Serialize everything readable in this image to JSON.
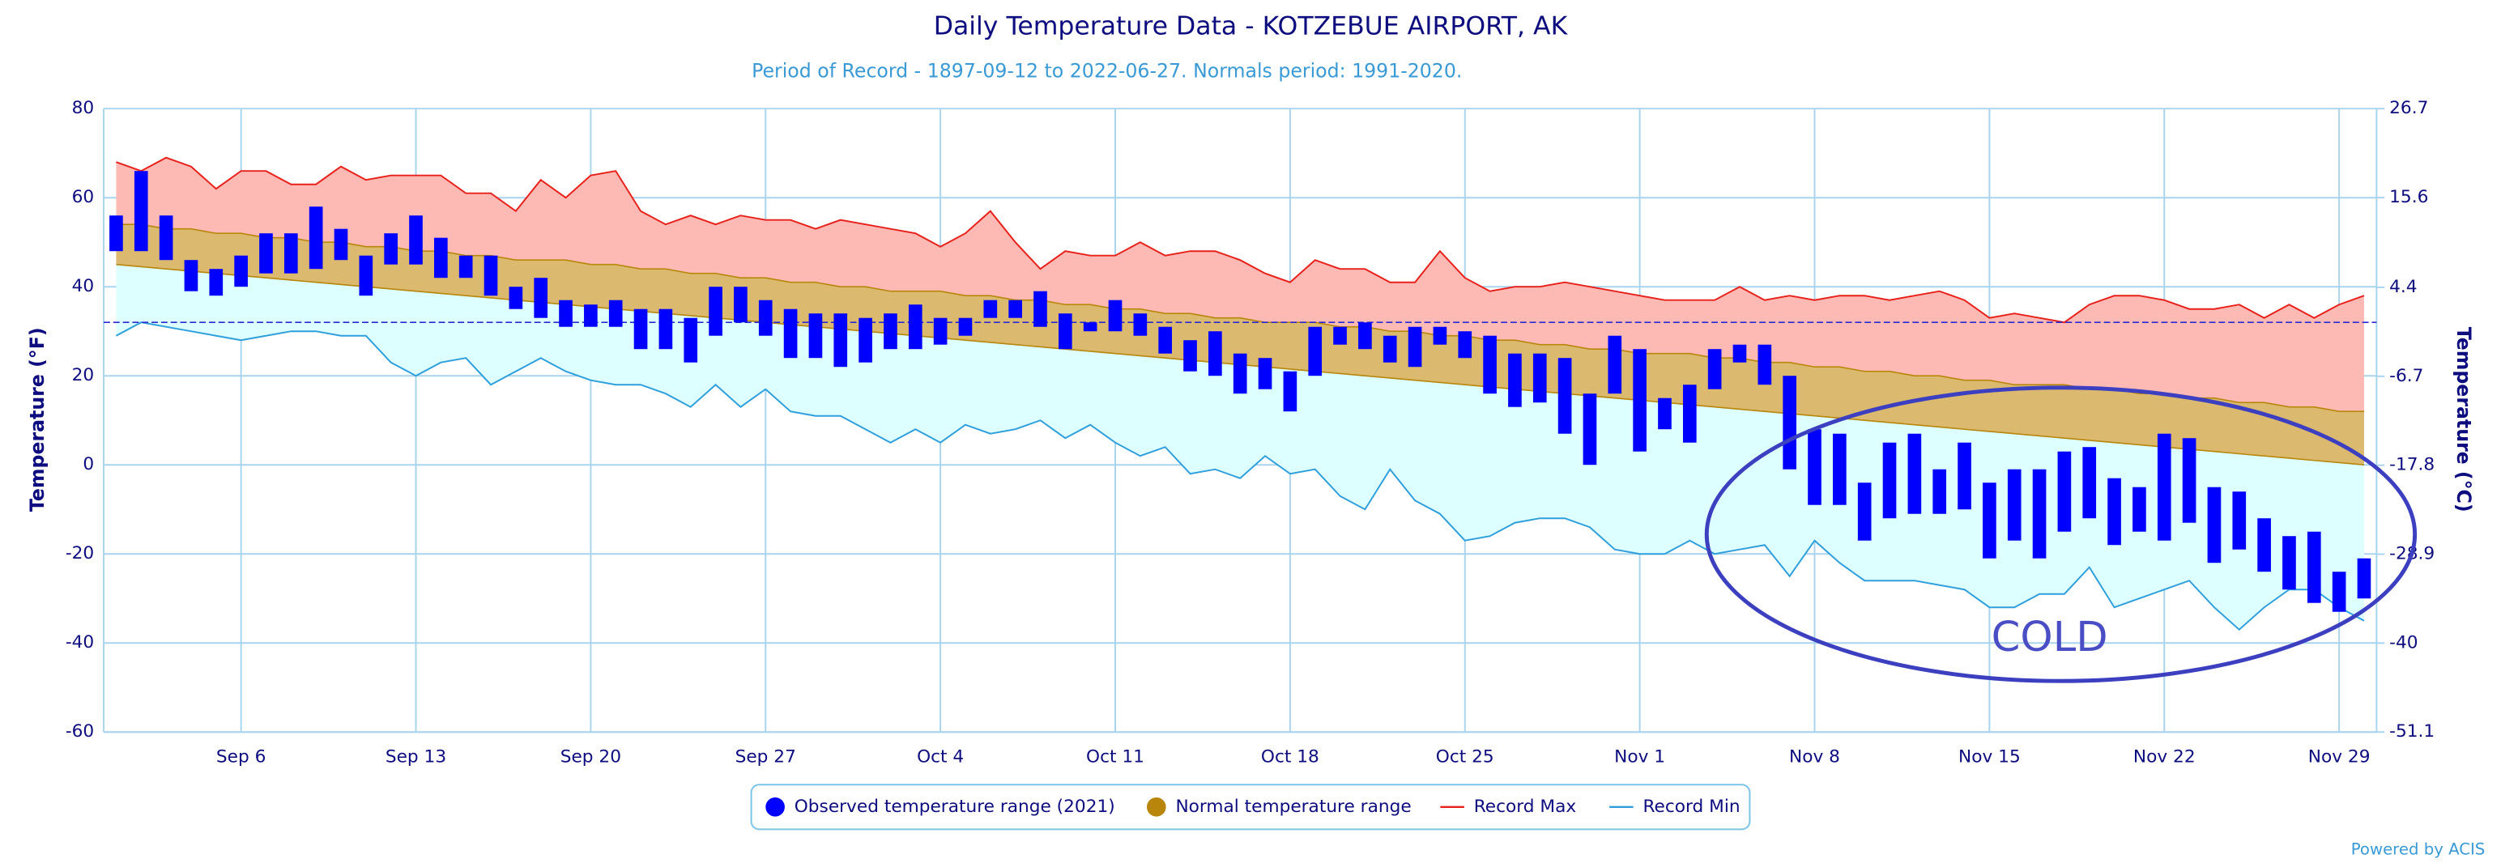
{
  "chart_data": {
    "type": "range",
    "title": "Daily Temperature Data - KOTZEBUE AIRPORT, AK",
    "subtitle": "Period of Record - 1897-09-12 to 2022-06-27. Normals period: 1991-2020.",
    "y_label": "Temperature (°F)",
    "y2_label": "Temperature (°C)",
    "annotation": "COLD",
    "credit": "Powered by ACIS",
    "categories": [
      null,
      null,
      null,
      null,
      null,
      "Sep 6",
      null,
      null,
      null,
      null,
      null,
      null,
      "Sep 13",
      null,
      null,
      null,
      null,
      null,
      null,
      "Sep 20",
      null,
      null,
      null,
      null,
      null,
      null,
      "Sep 27",
      null,
      null,
      null,
      null,
      null,
      null,
      "Oct 4",
      null,
      null,
      null,
      null,
      null,
      null,
      "Oct 11",
      null,
      null,
      null,
      null,
      null,
      null,
      "Oct 18",
      null,
      null,
      null,
      null,
      null,
      null,
      "Oct 25",
      null,
      null,
      null,
      null,
      null,
      null,
      "Nov 1",
      null,
      null,
      null,
      null,
      null,
      null,
      "Nov 8",
      null,
      null,
      null,
      null,
      null,
      null,
      "Nov 15",
      null,
      null,
      null,
      null,
      null,
      null,
      "Nov 22",
      null,
      null,
      null,
      null,
      null,
      null,
      "Nov 29",
      null
    ],
    "series": [
      {
        "name": "Observed temperature range (2021)",
        "color": "#0000ff",
        "low": [
          48,
          48,
          46,
          39,
          38,
          40,
          43,
          43,
          44,
          46,
          38,
          45,
          45,
          42,
          42,
          38,
          35,
          33,
          31,
          31,
          31,
          26,
          26,
          23,
          29,
          32,
          29,
          24,
          24,
          22,
          23,
          26,
          26,
          27,
          29,
          33,
          33,
          31,
          26,
          30,
          30,
          29,
          25,
          21,
          20,
          16,
          17,
          12,
          20,
          27,
          26,
          23,
          22,
          27,
          24,
          16,
          13,
          14,
          7,
          0,
          16,
          3,
          8,
          5,
          17,
          23,
          18,
          -1,
          -9,
          -9,
          -17,
          -12,
          -11,
          -11,
          -10,
          -21,
          -17,
          -21,
          -15,
          -12,
          -18,
          -15,
          -17,
          -13,
          -22,
          -19,
          -24,
          -28,
          -31,
          -33,
          -30
        ],
        "high": [
          56,
          66,
          56,
          46,
          44,
          47,
          52,
          52,
          58,
          53,
          47,
          52,
          56,
          51,
          47,
          47,
          40,
          42,
          37,
          36,
          37,
          35,
          35,
          33,
          40,
          40,
          37,
          35,
          34,
          34,
          33,
          34,
          36,
          33,
          33,
          37,
          37,
          39,
          34,
          32,
          37,
          34,
          31,
          28,
          30,
          25,
          24,
          21,
          31,
          31,
          32,
          29,
          31,
          31,
          30,
          29,
          25,
          25,
          24,
          16,
          29,
          26,
          15,
          18,
          26,
          27,
          27,
          20,
          8,
          7,
          -4,
          5,
          7,
          -1,
          5,
          -4,
          -1,
          -1,
          3,
          4,
          -3,
          -5,
          7,
          6,
          -5,
          -6,
          -12,
          -16,
          -15,
          -24,
          -21
        ]
      },
      {
        "name": "Normal temperature range",
        "color": "#b8860b",
        "fill": "#dbb96f",
        "low": [
          45,
          44.5,
          44,
          43.5,
          43,
          42.5,
          42,
          41.5,
          41,
          40.5,
          40,
          39.5,
          39,
          38.5,
          38,
          37.5,
          37,
          36.5,
          36,
          35.5,
          35,
          34.5,
          34,
          33.5,
          33,
          32.5,
          32,
          31.5,
          31,
          30.5,
          30,
          29.5,
          29,
          28.5,
          28,
          27.5,
          27,
          26.5,
          26,
          25.5,
          25,
          24.5,
          24,
          23.5,
          23,
          22.5,
          22,
          21.5,
          21,
          20.5,
          20,
          19.5,
          19,
          18.5,
          18,
          17.5,
          17,
          16.5,
          16,
          15.5,
          15,
          14.5,
          14,
          13.5,
          13,
          12.5,
          12,
          11.5,
          11,
          10.5,
          10,
          9.5,
          9,
          8.5,
          8,
          7.5,
          7,
          6.5,
          6,
          5.5,
          5,
          4.5,
          4,
          3.5,
          3,
          2.5,
          2,
          1.5,
          1,
          0.5,
          0
        ],
        "high": [
          54,
          54,
          53,
          53,
          52,
          52,
          51,
          51,
          50,
          50,
          49,
          49,
          48,
          48,
          47,
          47,
          46,
          46,
          46,
          45,
          45,
          44,
          44,
          43,
          43,
          42,
          42,
          41,
          41,
          40,
          40,
          39,
          39,
          39,
          38,
          38,
          37,
          37,
          36,
          36,
          35,
          35,
          34,
          34,
          33,
          33,
          32,
          32,
          32,
          31,
          31,
          30,
          30,
          29,
          29,
          28,
          28,
          27,
          27,
          26,
          26,
          25,
          25,
          25,
          24,
          24,
          23,
          23,
          22,
          22,
          21,
          21,
          20,
          20,
          19,
          19,
          18,
          18,
          18,
          17,
          17,
          16,
          16,
          15,
          15,
          14,
          14,
          13,
          13,
          12,
          12
        ]
      },
      {
        "name": "Record Max",
        "color": "#e8201a",
        "fill": "#fdbab5",
        "values": [
          68,
          66,
          69,
          67,
          62,
          66,
          66,
          63,
          63,
          67,
          64,
          65,
          65,
          65,
          61,
          61,
          57,
          64,
          60,
          65,
          66,
          57,
          54,
          56,
          54,
          56,
          55,
          55,
          53,
          55,
          54,
          53,
          52,
          49,
          52,
          57,
          50,
          44,
          48,
          47,
          47,
          50,
          47,
          48,
          48,
          46,
          43,
          41,
          46,
          44,
          44,
          41,
          41,
          48,
          42,
          39,
          40,
          40,
          41,
          40,
          39,
          38,
          37,
          37,
          37,
          40,
          37,
          38,
          37,
          38,
          38,
          37,
          38,
          39,
          37,
          33,
          34,
          33,
          32,
          36,
          38,
          38,
          37,
          35,
          35,
          36,
          33,
          36,
          33,
          36,
          38
        ]
      },
      {
        "name": "Record Min",
        "color": "#2e9fdc",
        "fill": "#ddffff",
        "values": [
          29,
          32,
          31,
          30,
          29,
          28,
          29,
          30,
          30,
          29,
          29,
          23,
          20,
          23,
          24,
          18,
          21,
          24,
          21,
          19,
          18,
          18,
          16,
          13,
          18,
          13,
          17,
          12,
          11,
          11,
          8,
          5,
          8,
          5,
          9,
          7,
          8,
          10,
          6,
          9,
          5,
          2,
          4,
          -2,
          -1,
          -3,
          2,
          -2,
          -1,
          -7,
          -10,
          -1,
          -8,
          -11,
          -17,
          -16,
          -13,
          -12,
          -12,
          -14,
          -19,
          -20,
          -20,
          -17,
          -20,
          -19,
          -18,
          -25,
          -17,
          -22,
          -26,
          -26,
          -26,
          -27,
          -28,
          -32,
          -32,
          -29,
          -29,
          -23,
          -32,
          -30,
          -28,
          -26,
          -32,
          -37,
          -32,
          -28,
          -28,
          -32,
          -35
        ]
      }
    ],
    "reference_line": 32,
    "ylim": [
      -60,
      80
    ],
    "yticks": [
      -60,
      -40,
      -20,
      0,
      20,
      40,
      60,
      80
    ],
    "y2lim": [
      -51.1,
      26.7
    ],
    "y2ticks": [
      -51.1,
      -40,
      -28.9,
      -17.8,
      -6.7,
      4.4,
      15.6,
      26.7
    ],
    "grid": true
  }
}
